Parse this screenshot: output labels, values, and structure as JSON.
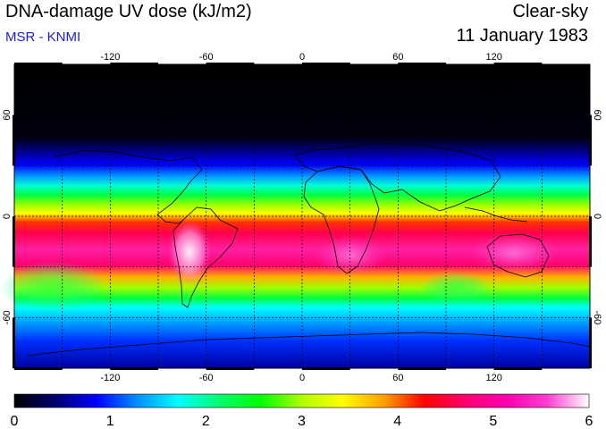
{
  "header": {
    "title": "DNA-damage UV dose (kJ/m2)",
    "subtitle": "MSR - KNMI",
    "mode": "Clear-sky",
    "date": "11 January 1983"
  },
  "map": {
    "lon_ticks": [
      "-120",
      "-60",
      "0",
      "60",
      "120"
    ],
    "lat_ticks_left": [
      "60",
      "0",
      "-60"
    ],
    "lat_ticks_right": [
      "60",
      "0",
      "-60"
    ],
    "lon_values": [
      -120,
      -60,
      0,
      60,
      120
    ],
    "lat_values": [
      60,
      0,
      -60
    ],
    "grid_lon": [
      -150,
      -120,
      -90,
      -60,
      -30,
      0,
      30,
      60,
      90,
      120,
      150
    ],
    "grid_lat": [
      60,
      30,
      0,
      -30,
      -60
    ],
    "extent": {
      "lon_min": -180,
      "lon_max": 180,
      "lat_min": -90,
      "lat_max": 90
    }
  },
  "colorbar": {
    "labels": [
      "0",
      "1",
      "2",
      "3",
      "4",
      "5",
      "6"
    ],
    "min": 0,
    "max": 6,
    "stops": [
      "#000000",
      "#000070",
      "#0000ff",
      "#0090ff",
      "#00ffff",
      "#00ff70",
      "#00ff00",
      "#b0ff00",
      "#ffff00",
      "#ffa000",
      "#ff0000",
      "#ff0070",
      "#ff00b0",
      "#ff40d0",
      "#ffffff"
    ]
  }
}
